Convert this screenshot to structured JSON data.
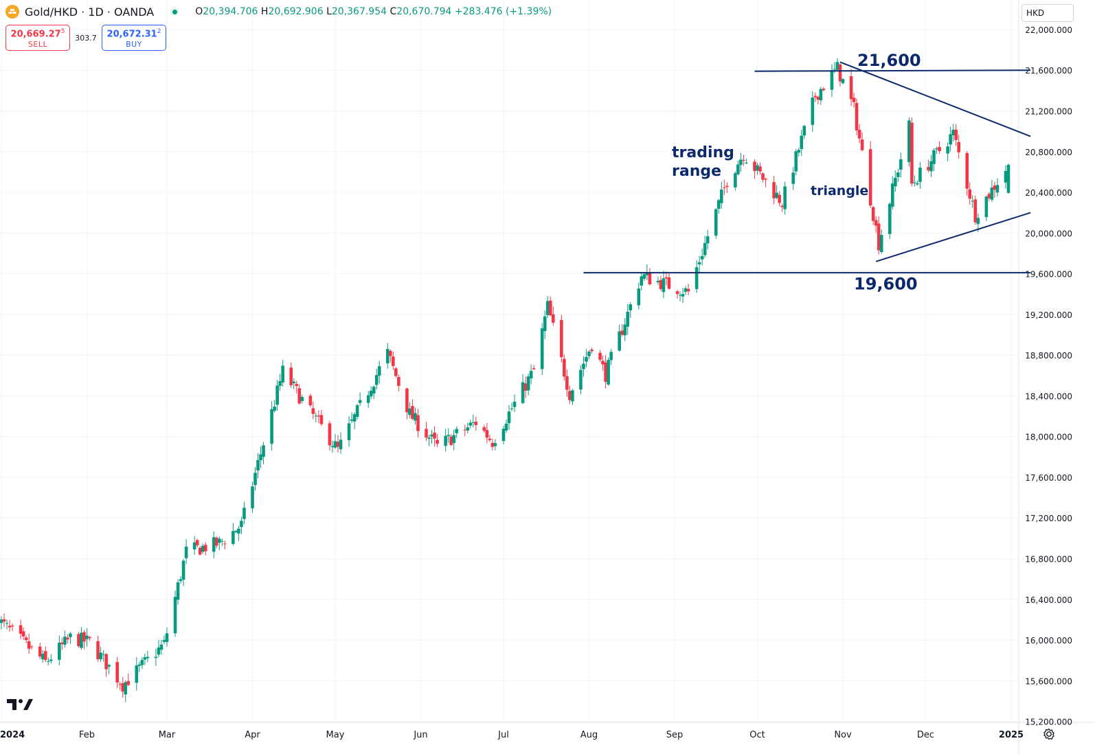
{
  "header": {
    "symbol_title": "Gold/HKD · 1D · OANDA",
    "open_label": "O",
    "open_value": "20,394.706",
    "high_label": "H",
    "high_value": "20,692.906",
    "low_label": "L",
    "low_value": "20,367.954",
    "close_label": "C",
    "close_value": "20,670.794",
    "change_value": "+283.476 (+1.39%)"
  },
  "trade": {
    "sell_price": "20,669.27",
    "sell_price_sup": "5",
    "sell_label": "SELL",
    "spread": "303.7",
    "buy_price": "20,672.31",
    "buy_price_sup": "2",
    "buy_label": "BUY"
  },
  "currency_selector": "HKD",
  "colors": {
    "up": "#089981",
    "down": "#f23645",
    "annotation": "#0c2a6b",
    "grid": "#f0f3fa",
    "text": "#131722"
  },
  "chart_data": {
    "type": "candlestick",
    "yaxis": {
      "ticks": [
        15200,
        15600,
        16000,
        16400,
        16800,
        17200,
        17600,
        18000,
        18400,
        18800,
        19200,
        19600,
        20000,
        20400,
        20800,
        21200,
        21600,
        22000
      ],
      "ylim": [
        14880,
        22290
      ]
    },
    "xaxis": {
      "ticks": [
        {
          "label": "2024",
          "date": "2024-01-01",
          "bold": true
        },
        {
          "label": "Feb",
          "date": "2024-02-01"
        },
        {
          "label": "Mar",
          "date": "2024-03-01"
        },
        {
          "label": "Apr",
          "date": "2024-04-01"
        },
        {
          "label": "May",
          "date": "2024-05-01"
        },
        {
          "label": "Jun",
          "date": "2024-06-01"
        },
        {
          "label": "Jul",
          "date": "2024-07-01"
        },
        {
          "label": "Aug",
          "date": "2024-08-01"
        },
        {
          "label": "Sep",
          "date": "2024-09-01"
        },
        {
          "label": "Oct",
          "date": "2024-10-01"
        },
        {
          "label": "Nov",
          "date": "2024-11-01"
        },
        {
          "label": "Dec",
          "date": "2024-12-01"
        },
        {
          "label": "2025",
          "date": "2025-01-01",
          "bold": true
        }
      ]
    },
    "price_path": [
      {
        "date": "2023-12-29",
        "close": 16240
      },
      {
        "date": "2024-01-17",
        "close": 15780
      },
      {
        "date": "2024-01-26",
        "close": 16020
      },
      {
        "date": "2024-02-02",
        "close": 15980
      },
      {
        "date": "2024-02-14",
        "close": 15560
      },
      {
        "date": "2024-02-29",
        "close": 15960
      },
      {
        "date": "2024-03-08",
        "close": 16870
      },
      {
        "date": "2024-03-20",
        "close": 16950
      },
      {
        "date": "2024-03-28",
        "close": 17130
      },
      {
        "date": "2024-04-12",
        "close": 18640
      },
      {
        "date": "2024-04-22",
        "close": 18240
      },
      {
        "date": "2024-05-02",
        "close": 17870
      },
      {
        "date": "2024-05-20",
        "close": 18820
      },
      {
        "date": "2024-05-28",
        "close": 18220
      },
      {
        "date": "2024-06-07",
        "close": 17900
      },
      {
        "date": "2024-06-21",
        "close": 18140
      },
      {
        "date": "2024-06-27",
        "close": 17950
      },
      {
        "date": "2024-07-12",
        "close": 18650
      },
      {
        "date": "2024-07-17",
        "close": 19280
      },
      {
        "date": "2024-07-25",
        "close": 18420
      },
      {
        "date": "2024-08-02",
        "close": 18910
      },
      {
        "date": "2024-08-07",
        "close": 18610
      },
      {
        "date": "2024-08-20",
        "close": 19580
      },
      {
        "date": "2024-09-06",
        "close": 19420
      },
      {
        "date": "2024-09-20",
        "close": 20520
      },
      {
        "date": "2024-09-26",
        "close": 20780
      },
      {
        "date": "2024-10-10",
        "close": 20300
      },
      {
        "date": "2024-10-22",
        "close": 21350
      },
      {
        "date": "2024-10-30",
        "close": 21620
      },
      {
        "date": "2024-11-05",
        "close": 21220
      },
      {
        "date": "2024-11-14",
        "close": 19900
      },
      {
        "date": "2024-11-25",
        "close": 21050
      },
      {
        "date": "2024-11-26",
        "close": 20480
      },
      {
        "date": "2024-12-11",
        "close": 20980
      },
      {
        "date": "2024-12-19",
        "close": 20180
      },
      {
        "date": "2024-12-31",
        "close": 20670
      }
    ],
    "annotations": {
      "lines": [
        {
          "name": "resistance-line",
          "from": {
            "date": "2024-09-30",
            "price": 21590
          },
          "to": {
            "date": "2025-01-08",
            "price": 21600
          }
        },
        {
          "name": "support-line",
          "from": {
            "date": "2024-07-30",
            "price": 19610
          },
          "to": {
            "date": "2025-01-08",
            "price": 19610
          }
        },
        {
          "name": "triangle-upper-line",
          "from": {
            "date": "2024-10-31",
            "price": 21680
          },
          "to": {
            "date": "2025-01-08",
            "price": 20950
          }
        },
        {
          "name": "triangle-lower-line",
          "from": {
            "date": "2024-11-13",
            "price": 19720
          },
          "to": {
            "date": "2025-01-08",
            "price": 20200
          }
        }
      ],
      "labels": [
        {
          "name": "resistance-label",
          "text": "21,600"
        },
        {
          "name": "support-label",
          "text": "19,600"
        },
        {
          "name": "trading-range-label",
          "text": "trading range"
        },
        {
          "name": "triangle-label",
          "text": "triangle"
        }
      ]
    }
  }
}
